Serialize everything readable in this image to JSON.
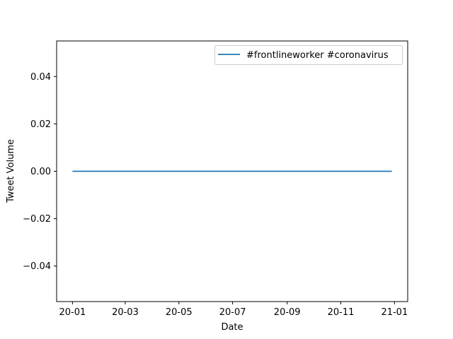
{
  "chart_data": {
    "type": "line",
    "title": "",
    "xlabel": "Date",
    "ylabel": "Tweet Volume",
    "x_ticks": [
      "20-01",
      "20-03",
      "20-05",
      "20-07",
      "20-09",
      "20-11",
      "21-01"
    ],
    "x_tick_dates": [
      "2020-01-01",
      "2020-03-01",
      "2020-05-01",
      "2020-07-01",
      "2020-09-01",
      "2020-11-01",
      "2021-01-01"
    ],
    "y_ticks": [
      "0.04",
      "0.02",
      "0.00",
      "−0.02",
      "−0.04"
    ],
    "y_tick_values": [
      0.04,
      0.02,
      0.0,
      -0.02,
      -0.04
    ],
    "xlim": [
      "2019-12-14",
      "2021-01-16"
    ],
    "ylim": [
      -0.055,
      0.055
    ],
    "grid": false,
    "legend_position": "top-right",
    "series": [
      {
        "name": "#frontlineworker #coronavirus",
        "color": "#1f77b4",
        "x": [
          "2020-01-01",
          "2020-12-29"
        ],
        "y": [
          0,
          0
        ]
      }
    ]
  }
}
